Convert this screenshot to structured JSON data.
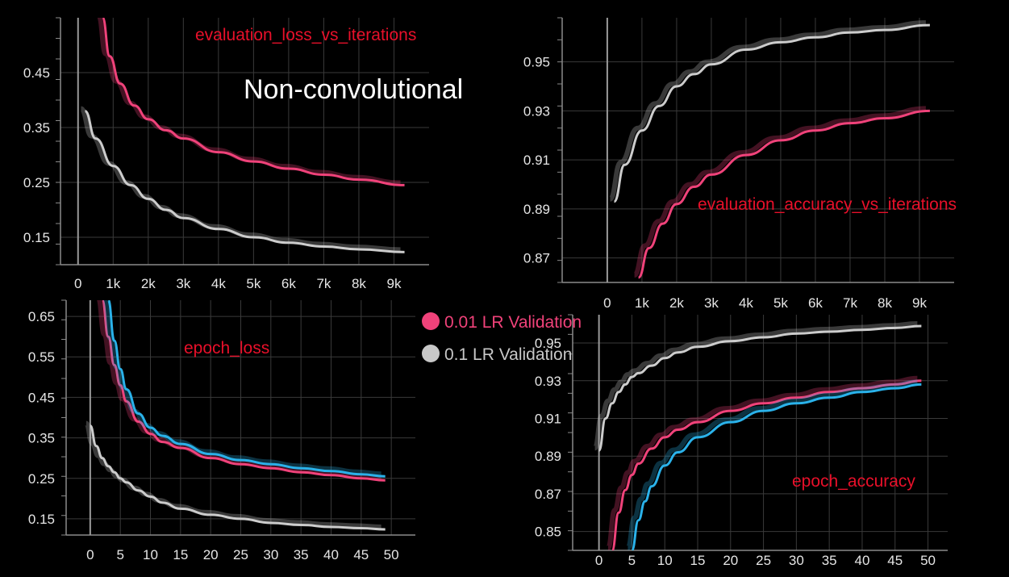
{
  "page": {
    "title": "Non-convolutional",
    "colors": {
      "background": "#000000",
      "title_color": "#e8102a",
      "grid": "#3a3a3a",
      "axis": "#8a8a8a"
    }
  },
  "legend": {
    "items": [
      {
        "label": "0.01 LR Validation",
        "color": "#f0427a"
      },
      {
        "label": "0.1 LR Validation",
        "color": "#c8c8c8"
      }
    ]
  },
  "chart_data": [
    {
      "type": "line",
      "title": "evaluation_loss_vs_iterations",
      "xticks": [
        "0",
        "1k",
        "2k",
        "3k",
        "4k",
        "5k",
        "6k",
        "7k",
        "8k",
        "9k"
      ],
      "yticks": [
        "0.15",
        "0.25",
        "0.35",
        "0.45"
      ],
      "xlim": [
        -500,
        10000
      ],
      "ylim": [
        0.1,
        0.55
      ],
      "series": [
        {
          "name": "0.01 LR Validation",
          "color": "#f0427a",
          "x": [
            700,
            900,
            1200,
            1600,
            2000,
            2500,
            3000,
            4000,
            5000,
            6000,
            7000,
            8000,
            9300
          ],
          "y": [
            0.55,
            0.48,
            0.43,
            0.39,
            0.365,
            0.345,
            0.33,
            0.305,
            0.288,
            0.275,
            0.264,
            0.255,
            0.245
          ]
        },
        {
          "name": "0.1 LR Validation",
          "color": "#cccccc",
          "x": [
            200,
            500,
            1000,
            1500,
            2000,
            2500,
            3000,
            4000,
            5000,
            6000,
            7000,
            8000,
            9300
          ],
          "y": [
            0.38,
            0.33,
            0.28,
            0.245,
            0.22,
            0.2,
            0.185,
            0.165,
            0.15,
            0.14,
            0.133,
            0.128,
            0.123
          ]
        }
      ]
    },
    {
      "type": "line",
      "title": "evaluation_accuracy_vs_iterations",
      "xticks": [
        "0",
        "1k",
        "2k",
        "3k",
        "4k",
        "5k",
        "6k",
        "7k",
        "8k",
        "9k"
      ],
      "yticks": [
        "0.87",
        "0.89",
        "0.91",
        "0.93",
        "0.95"
      ],
      "xlim": [
        -1300,
        10000
      ],
      "ylim": [
        0.86,
        0.968
      ],
      "series": [
        {
          "name": "0.01 LR Validation",
          "color": "#f0427a",
          "x": [
            900,
            1200,
            1600,
            2000,
            2500,
            3000,
            4000,
            5000,
            6000,
            7000,
            8000,
            9300
          ],
          "y": [
            0.862,
            0.874,
            0.884,
            0.892,
            0.899,
            0.904,
            0.912,
            0.918,
            0.922,
            0.925,
            0.927,
            0.93
          ]
        },
        {
          "name": "0.1 LR Validation",
          "color": "#cccccc",
          "x": [
            200,
            500,
            1000,
            1500,
            2000,
            2500,
            3000,
            4000,
            5000,
            6000,
            7000,
            8000,
            9300
          ],
          "y": [
            0.893,
            0.908,
            0.922,
            0.932,
            0.94,
            0.945,
            0.949,
            0.955,
            0.958,
            0.96,
            0.962,
            0.963,
            0.965
          ]
        }
      ]
    },
    {
      "type": "line",
      "title": "epoch_loss",
      "xticks": [
        "0",
        "5",
        "10",
        "15",
        "20",
        "25",
        "30",
        "35",
        "40",
        "45",
        "50"
      ],
      "yticks": [
        "0.15",
        "0.25",
        "0.35",
        "0.45",
        "0.55",
        "0.65"
      ],
      "xlim": [
        -4,
        54
      ],
      "ylim": [
        0.11,
        0.69
      ],
      "series": [
        {
          "name": "0.01 LR Validation",
          "color": "#f0427a",
          "x": [
            2,
            3,
            4,
            5,
            6,
            8,
            10,
            12,
            15,
            20,
            25,
            30,
            35,
            40,
            45,
            49
          ],
          "y": [
            0.69,
            0.6,
            0.53,
            0.48,
            0.44,
            0.39,
            0.36,
            0.34,
            0.325,
            0.3,
            0.285,
            0.275,
            0.265,
            0.258,
            0.25,
            0.245
          ]
        },
        {
          "name": "",
          "color": "#2ab2ea",
          "x": [
            3,
            4,
            5,
            6,
            8,
            10,
            12,
            15,
            20,
            25,
            30,
            35,
            40,
            45,
            49
          ],
          "y": [
            0.69,
            0.59,
            0.52,
            0.47,
            0.41,
            0.375,
            0.355,
            0.335,
            0.31,
            0.295,
            0.285,
            0.275,
            0.268,
            0.26,
            0.255
          ]
        },
        {
          "name": "0.1 LR Validation",
          "color": "#cccccc",
          "x": [
            0,
            1,
            2,
            3,
            4,
            5,
            6,
            8,
            10,
            12,
            15,
            20,
            25,
            30,
            35,
            40,
            45,
            49
          ],
          "y": [
            0.38,
            0.33,
            0.3,
            0.28,
            0.265,
            0.25,
            0.24,
            0.22,
            0.205,
            0.19,
            0.175,
            0.16,
            0.15,
            0.14,
            0.135,
            0.13,
            0.127,
            0.124
          ]
        }
      ]
    },
    {
      "type": "line",
      "title": "epoch_accuracy",
      "xticks": [
        "0",
        "5",
        "10",
        "15",
        "20",
        "25",
        "30",
        "35",
        "40",
        "45",
        "50"
      ],
      "yticks": [
        "0.85",
        "0.87",
        "0.89",
        "0.91",
        "0.93",
        "0.95"
      ],
      "xlim": [
        -4,
        53
      ],
      "ylim": [
        0.84,
        0.965
      ],
      "series": [
        {
          "name": "0.01 LR Validation",
          "color": "#f0427a",
          "x": [
            2,
            3,
            4,
            5,
            6,
            8,
            10,
            12,
            15,
            20,
            25,
            30,
            35,
            40,
            45,
            49
          ],
          "y": [
            0.84,
            0.86,
            0.872,
            0.88,
            0.886,
            0.894,
            0.9,
            0.904,
            0.908,
            0.914,
            0.918,
            0.921,
            0.924,
            0.926,
            0.928,
            0.93
          ]
        },
        {
          "name": "",
          "color": "#2ab2ea",
          "x": [
            5,
            6,
            7,
            8,
            10,
            12,
            15,
            20,
            25,
            30,
            35,
            40,
            45,
            49
          ],
          "y": [
            0.84,
            0.856,
            0.866,
            0.874,
            0.885,
            0.892,
            0.9,
            0.908,
            0.914,
            0.918,
            0.921,
            0.924,
            0.926,
            0.928
          ]
        },
        {
          "name": "0.1 LR Validation",
          "color": "#cccccc",
          "x": [
            0,
            1,
            2,
            3,
            4,
            5,
            6,
            8,
            10,
            12,
            15,
            20,
            25,
            30,
            35,
            40,
            45,
            49
          ],
          "y": [
            0.893,
            0.91,
            0.918,
            0.924,
            0.928,
            0.932,
            0.934,
            0.938,
            0.942,
            0.945,
            0.948,
            0.951,
            0.953,
            0.955,
            0.956,
            0.957,
            0.958,
            0.959
          ]
        }
      ]
    }
  ]
}
